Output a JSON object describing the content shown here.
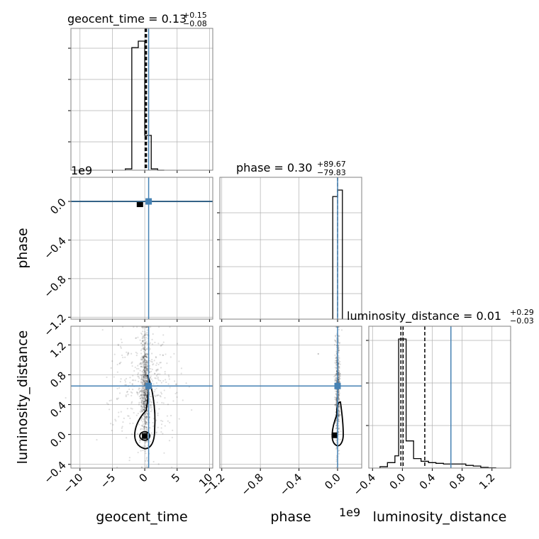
{
  "chart_data": {
    "type": "corner",
    "parameters": [
      "geocent_time",
      "phase",
      "luminosity_distance"
    ],
    "titles": {
      "geocent_time": {
        "text": "geocent_time = 0.13",
        "plus": "+0.15",
        "minus": "−0.08"
      },
      "phase": {
        "text": "phase = 0.30",
        "plus": "+89.67",
        "minus": "−79.83"
      },
      "luminosity_distance": {
        "text": "luminosity_distance = 0.01",
        "plus": "+0.29",
        "minus": "−0.03"
      }
    },
    "axis_labels": {
      "x": [
        "geocent_time",
        "phase",
        "luminosity_distance"
      ],
      "y": [
        "phase",
        "luminosity_distance"
      ]
    },
    "offset_texts": [
      "1e9",
      "1e9"
    ],
    "ranges": {
      "geocent_time": [
        -11.4,
        10.5
      ],
      "phase": [
        -1220000000.0,
        250000000.0
      ],
      "luminosity_distance": [
        -0.45,
        1.45
      ]
    },
    "ticks": {
      "geocent_time": {
        "values": [
          -10,
          -5,
          0,
          5,
          10
        ],
        "labels": [
          "−10",
          "−5",
          "0",
          "5",
          "10"
        ]
      },
      "phase_x": {
        "values": [
          -1.2,
          -0.8,
          -0.4,
          0.0
        ],
        "labels": [
          "−1.2",
          "−0.8",
          "−0.4",
          "0.0"
        ]
      },
      "phase_y": {
        "values": [
          -1.2,
          -0.8,
          -0.4,
          0.0
        ],
        "labels": [
          "−1.2",
          "−0.8",
          "−0.4",
          "0.0"
        ]
      },
      "luminosity_distance": {
        "values": [
          -0.4,
          0.0,
          0.4,
          0.8,
          1.2
        ],
        "labels": [
          "−0.4",
          "0.0",
          "0.4",
          "0.8",
          "1.2"
        ]
      }
    },
    "injection": {
      "geocent_time": 0.6,
      "phase": 0.0,
      "luminosity_distance": 0.65
    },
    "quantiles": {
      "geocent_time": [
        0.05,
        0.13,
        0.28
      ],
      "phase": [
        0.0
      ],
      "luminosity_distance": [
        -0.02,
        0.01,
        0.3
      ]
    },
    "histograms": {
      "geocent_time": {
        "edges": [
          -3.0,
          -2.0,
          -1.0,
          0.0,
          1.0,
          2.0,
          3.0
        ],
        "counts": [
          0.01,
          0.95,
          1.0,
          0.27,
          0.01,
          0.0
        ]
      },
      "phase": {
        "edges": [
          -0.05,
          0.0,
          0.05
        ],
        "counts": [
          0.95,
          1.0
        ]
      },
      "luminosity_distance": {
        "edges": [
          -0.3,
          -0.2,
          -0.1,
          -0.05,
          0.05,
          0.15,
          0.25,
          0.35,
          0.45,
          0.55,
          0.65,
          0.75,
          0.85,
          0.95,
          1.05,
          1.15,
          1.25
        ],
        "counts": [
          0.01,
          0.04,
          0.09,
          0.95,
          0.2,
          0.07,
          0.05,
          0.04,
          0.035,
          0.03,
          0.03,
          0.03,
          0.02,
          0.015,
          0.005,
          0.002
        ]
      }
    },
    "grid": true,
    "colors": {
      "injection": "#4682b4",
      "histogram": "#000000",
      "samples": "#000000",
      "frame": "#808080",
      "grid": "#b0b0b0"
    }
  }
}
